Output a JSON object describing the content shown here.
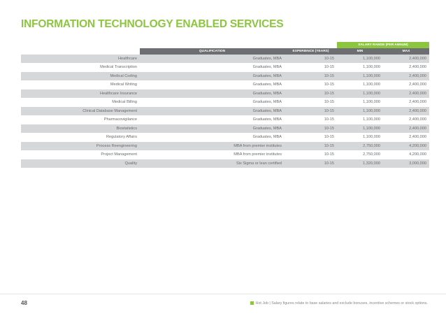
{
  "title": "INFORMATION TECHNOLOGY ENABLED SERVICES",
  "table": {
    "super_header": "SALARY RANGE (PER ANNUM)",
    "headers": {
      "qualification": "QUALIFICATION",
      "experience": "EXPERIENCE (YEARS)",
      "min": "MIN",
      "max": "MAX"
    },
    "rows": [
      {
        "role": "Healthcare",
        "qualification": "Graduates, MBA",
        "experience": "10-15",
        "min": "1,100,000",
        "max": "2,400,000"
      },
      {
        "role": "Medical Transcription",
        "qualification": "Graduates, MBA",
        "experience": "10-15",
        "min": "1,100,000",
        "max": "2,400,000"
      },
      {
        "role": "Medical Coding",
        "qualification": "Graduates, MBA",
        "experience": "10-15",
        "min": "1,100,000",
        "max": "2,400,000"
      },
      {
        "role": "Medical Writing",
        "qualification": "Graduates, MBA",
        "experience": "10-15",
        "min": "1,100,000",
        "max": "2,400,000"
      },
      {
        "role": "Healthcare Insurance",
        "qualification": "Graduates, MBA",
        "experience": "10-15",
        "min": "1,100,000",
        "max": "2,400,000"
      },
      {
        "role": "Medical Billing",
        "qualification": "Graduates, MBA",
        "experience": "10-15",
        "min": "1,100,000",
        "max": "2,400,000"
      },
      {
        "role": "Clinical Database Management",
        "qualification": "Graduates, MBA",
        "experience": "10-15",
        "min": "1,100,000",
        "max": "2,400,000"
      },
      {
        "role": "Pharmacovigilance",
        "qualification": "Graduates, MBA",
        "experience": "10-15",
        "min": "1,100,000",
        "max": "2,400,000"
      },
      {
        "role": "Biostatistics",
        "qualification": "Graduates, MBA",
        "experience": "10-15",
        "min": "1,100,000",
        "max": "2,400,000"
      },
      {
        "role": "Regulatory Affairs",
        "qualification": "Graduates, MBA",
        "experience": "10-15",
        "min": "1,100,000",
        "max": "2,400,000"
      },
      {
        "role": "Process Reengineering",
        "qualification": "MBA from premier institutes",
        "experience": "10-15",
        "min": "2,750,000",
        "max": "4,200,000"
      },
      {
        "role": "Project Management",
        "qualification": "MBA from premier institutes",
        "experience": "10-15",
        "min": "2,750,000",
        "max": "4,200,000"
      },
      {
        "role": "Quality",
        "qualification": "Six Sigma or lean certified",
        "experience": "10-15",
        "min": "1,320,000",
        "max": "3,000,000"
      }
    ]
  },
  "footer": {
    "page_number": "48",
    "note": "Hot Job  |  Salary figures relate to base salaries and exclude bonuses, incentive schemes or stock options.",
    "accent_color": "#8cc63f"
  }
}
